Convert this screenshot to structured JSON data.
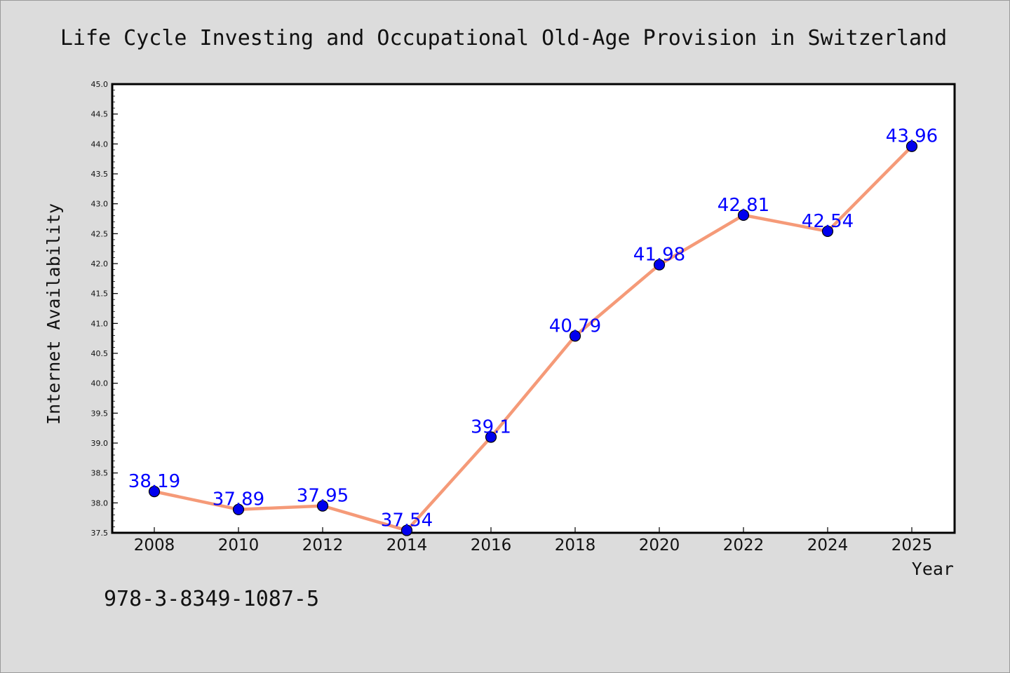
{
  "chart_data": {
    "type": "line",
    "title": "Life Cycle Investing and Occupational Old-Age Provision in Switzerland",
    "xlabel": "Year",
    "ylabel": "Internet Availability",
    "categories": [
      "2008",
      "2010",
      "2012",
      "2014",
      "2016",
      "2018",
      "2020",
      "2022",
      "2024",
      "2025"
    ],
    "series": [
      {
        "values": [
          38.19,
          37.89,
          37.95,
          37.54,
          39.1,
          40.79,
          41.98,
          42.81,
          42.54,
          43.96
        ],
        "data_labels": [
          "38.19",
          "37.89",
          "37.95",
          "37.54",
          "39.1",
          "40.79",
          "41.98",
          "42.81",
          "42.54",
          "43.96"
        ],
        "line_color": "#f59a78",
        "marker_color": "#0000ee"
      }
    ],
    "ylim": [
      37.5,
      45.0
    ],
    "yticks": [
      "37.5",
      "38.0",
      "38.5",
      "39.0",
      "39.5",
      "40.0",
      "40.5",
      "41.0",
      "41.5",
      "42.0",
      "42.5",
      "43.0",
      "43.5",
      "44.0",
      "44.5",
      "45.0"
    ],
    "grid": false,
    "legend": "none",
    "data_label_color": "#0000ff"
  },
  "footer": {
    "isbn": "978-3-8349-1087-5"
  },
  "colors": {
    "background": "#dcdcdc",
    "plot_area": "#ffffff",
    "axis": "#000000"
  }
}
